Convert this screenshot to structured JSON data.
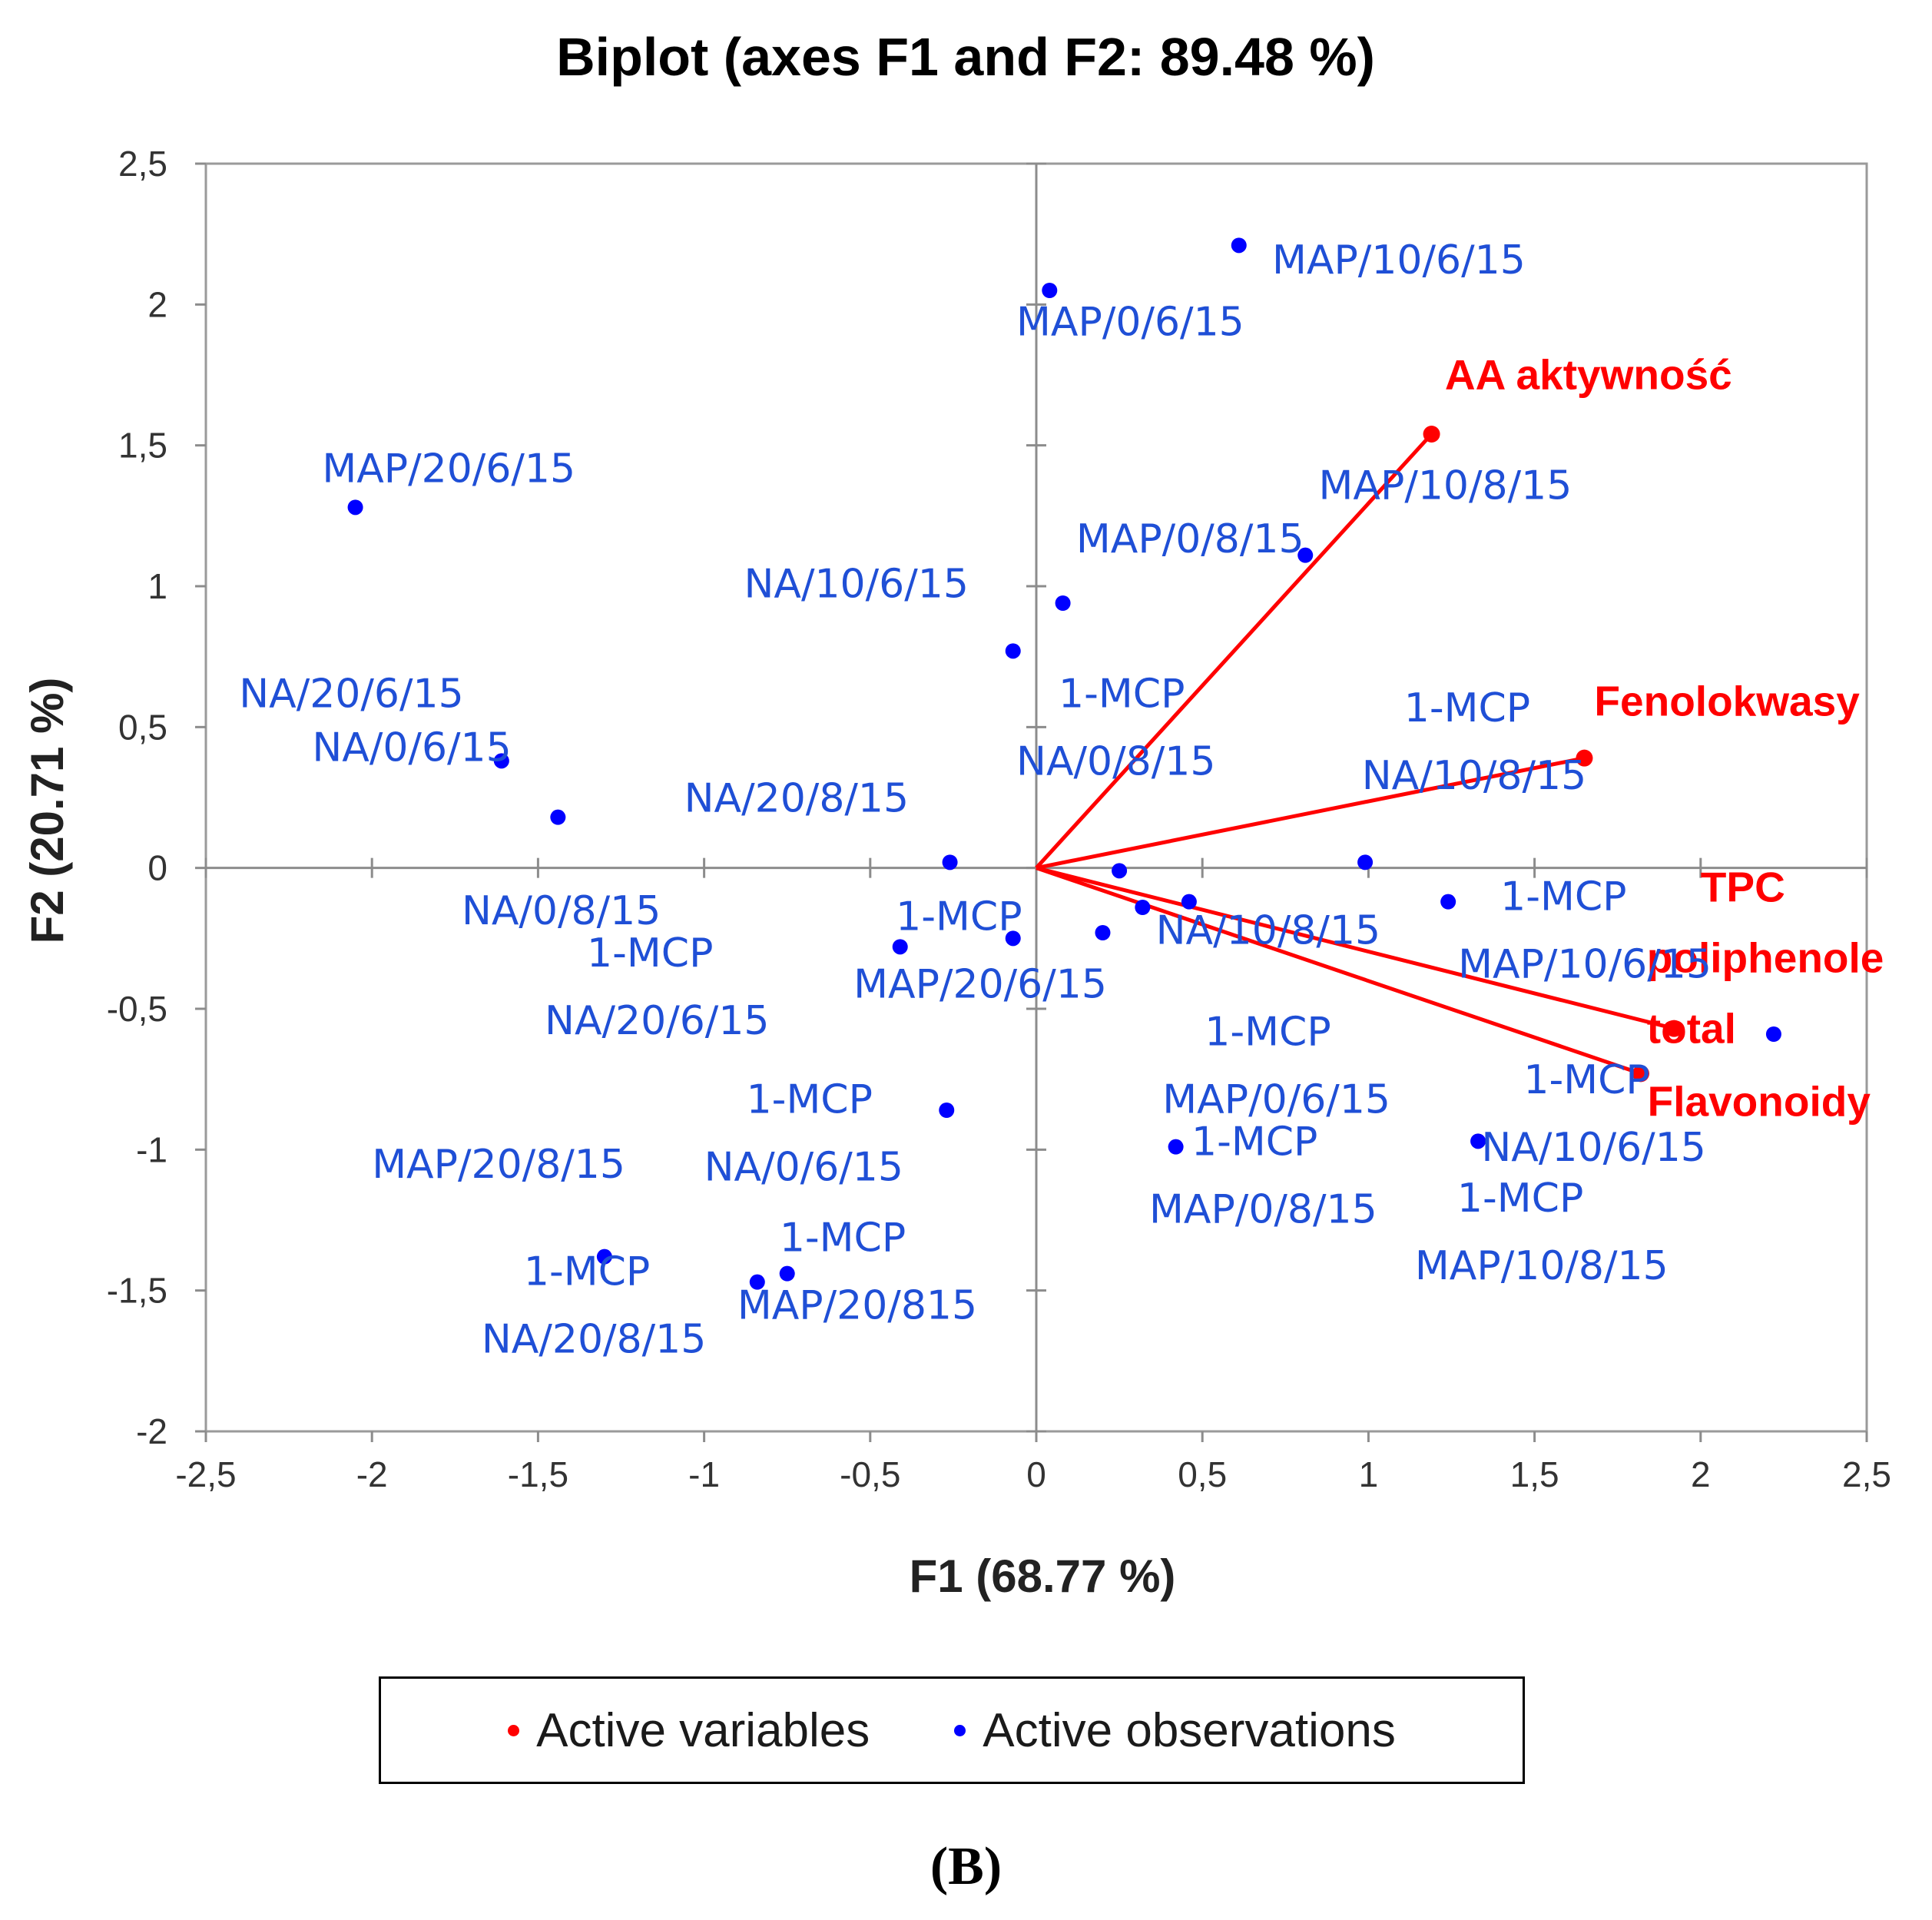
{
  "chart_data": {
    "type": "scatter",
    "subtype": "biplot",
    "title": "Biplot (axes F1 and F2: 89.48 %)",
    "xlabel": "F1 (68.77 %)",
    "ylabel": "F2 (20.71 %)",
    "xlim": [
      -2.5,
      2.5
    ],
    "ylim": [
      -2,
      2.5
    ],
    "xticks": [
      -2.5,
      -2,
      -1.5,
      -1,
      -0.5,
      0,
      0.5,
      1,
      1.5,
      2,
      2.5
    ],
    "yticks": [
      -2,
      -1.5,
      -1,
      -0.5,
      0,
      0.5,
      1,
      1.5,
      2,
      2.5
    ],
    "xtick_labels": [
      "-2,5",
      "-2",
      "-1,5",
      "-1",
      "-0,5",
      "0",
      "0,5",
      "1",
      "1,5",
      "2",
      "2,5"
    ],
    "ytick_labels": [
      "-2",
      "-1,5",
      "-1",
      "-0,5",
      "0",
      "0,5",
      "1",
      "1,5",
      "2",
      "2,5"
    ],
    "grid": false,
    "legend": {
      "position": "bottom",
      "entries": [
        {
          "label": "Active variables",
          "color": "#ff0000"
        },
        {
          "label": "Active observations",
          "color": "#0000ff"
        }
      ]
    },
    "variables_color": "#ff0000",
    "observations_color": "#0000ff",
    "label_color": "#1f4fd6",
    "variables": [
      {
        "name": "AA aktywność",
        "lines": [
          "AA aktywność"
        ],
        "x": 1.19,
        "y": 1.54
      },
      {
        "name": "Fenolokwasy",
        "lines": [
          "Fenolokwasy"
        ],
        "x": 1.65,
        "y": 0.39
      },
      {
        "name": "TPC poliphenole total",
        "lines": [
          "TPC",
          "poliphenole",
          "total"
        ],
        "x": 1.92,
        "y": -0.57
      },
      {
        "name": "Flavonoidy",
        "lines": [
          "Flavonoidy"
        ],
        "x": 1.82,
        "y": -0.73
      }
    ],
    "observations": [
      {
        "x": 0.61,
        "y": 2.21
      },
      {
        "x": 0.04,
        "y": 2.05
      },
      {
        "x": -2.05,
        "y": 1.28
      },
      {
        "x": 0.81,
        "y": 1.11
      },
      {
        "x": 0.08,
        "y": 0.94
      },
      {
        "x": -0.07,
        "y": 0.77
      },
      {
        "x": -1.61,
        "y": 0.38
      },
      {
        "x": -1.44,
        "y": 0.18
      },
      {
        "x": -0.26,
        "y": 0.02
      },
      {
        "x": 0.99,
        "y": 0.02
      },
      {
        "x": 0.25,
        "y": -0.01
      },
      {
        "x": 0.32,
        "y": -0.14
      },
      {
        "x": 0.46,
        "y": -0.12
      },
      {
        "x": 1.24,
        "y": -0.12
      },
      {
        "x": 0.2,
        "y": -0.23
      },
      {
        "x": -0.07,
        "y": -0.25
      },
      {
        "x": -0.41,
        "y": -0.28
      },
      {
        "x": 2.22,
        "y": -0.59
      },
      {
        "x": -0.27,
        "y": -0.86
      },
      {
        "x": 0.42,
        "y": -0.99
      },
      {
        "x": 1.33,
        "y": -0.97
      },
      {
        "x": -1.3,
        "y": -1.38
      },
      {
        "x": -0.84,
        "y": -1.47
      },
      {
        "x": -0.75,
        "y": -1.44
      }
    ],
    "observation_labels": [
      {
        "lines": [
          "MAP/10/6/15"
        ],
        "x": 0.71,
        "y": 2.11
      },
      {
        "lines": [
          "MAP/0/6/15"
        ],
        "x": -0.06,
        "y": 1.89
      },
      {
        "lines": [
          "MAP/20/6/15"
        ],
        "x": -2.15,
        "y": 1.37
      },
      {
        "lines": [
          "MAP/10/8/15"
        ],
        "x": 0.85,
        "y": 1.31
      },
      {
        "lines": [
          "MAP/0/8/15"
        ],
        "x": 0.12,
        "y": 1.12
      },
      {
        "lines": [
          "NA/10/6/15"
        ],
        "x": -0.88,
        "y": 0.96
      },
      {
        "lines": [
          "1-MCP",
          "NA/0/8/15"
        ],
        "x": -0.06,
        "y": 0.57
      },
      {
        "lines": [
          "1-MCP",
          "NA/10/8/15"
        ],
        "x": 0.98,
        "y": 0.52
      },
      {
        "lines": [
          "NA/20/6/15"
        ],
        "x": -2.4,
        "y": 0.57
      },
      {
        "lines": [
          "NA/0/6/15"
        ],
        "x": -2.18,
        "y": 0.38
      },
      {
        "lines": [
          "NA/20/8/15"
        ],
        "x": -1.06,
        "y": 0.2
      },
      {
        "lines": [
          "NA/0/8/15"
        ],
        "x": -1.73,
        "y": -0.2
      },
      {
        "lines": [
          "1-MCP",
          "NA/20/6/15"
        ],
        "x": -1.48,
        "y": -0.35
      },
      {
        "lines": [
          "1-MCP",
          "MAP/20/6/15"
        ],
        "x": -0.55,
        "y": -0.22
      },
      {
        "lines": [
          "NA/10/8/15"
        ],
        "x": 0.36,
        "y": -0.27
      },
      {
        "lines": [
          "1-MCP",
          "MAP/10/6/15"
        ],
        "x": 1.27,
        "y": -0.15
      },
      {
        "lines": [
          "1-MCP",
          "MAP/0/6/15"
        ],
        "x": 0.38,
        "y": -0.63
      },
      {
        "lines": [
          "1-MCP",
          "MAP/0/8/15"
        ],
        "x": 0.34,
        "y": -1.02
      },
      {
        "lines": [
          "1-MCP",
          "NA/10/6/15"
        ],
        "x": 1.34,
        "y": -0.8
      },
      {
        "lines": [
          "1-MCP",
          "MAP/10/8/15"
        ],
        "x": 1.14,
        "y": -1.22
      },
      {
        "lines": [
          "1-MCP",
          "NA/0/6/15"
        ],
        "x": -1.0,
        "y": -0.87
      },
      {
        "lines": [
          "MAP/20/8/15"
        ],
        "x": -2.0,
        "y": -1.1
      },
      {
        "lines": [
          "1-MCP",
          "NA/20/8/15"
        ],
        "x": -1.67,
        "y": -1.48
      },
      {
        "lines": [
          "1-MCP",
          "MAP/20/815"
        ],
        "x": -0.9,
        "y": -1.36
      }
    ]
  },
  "legend": {
    "variables_label": "Active variables",
    "observations_label": "Active observations"
  },
  "panel_label": "(B)"
}
